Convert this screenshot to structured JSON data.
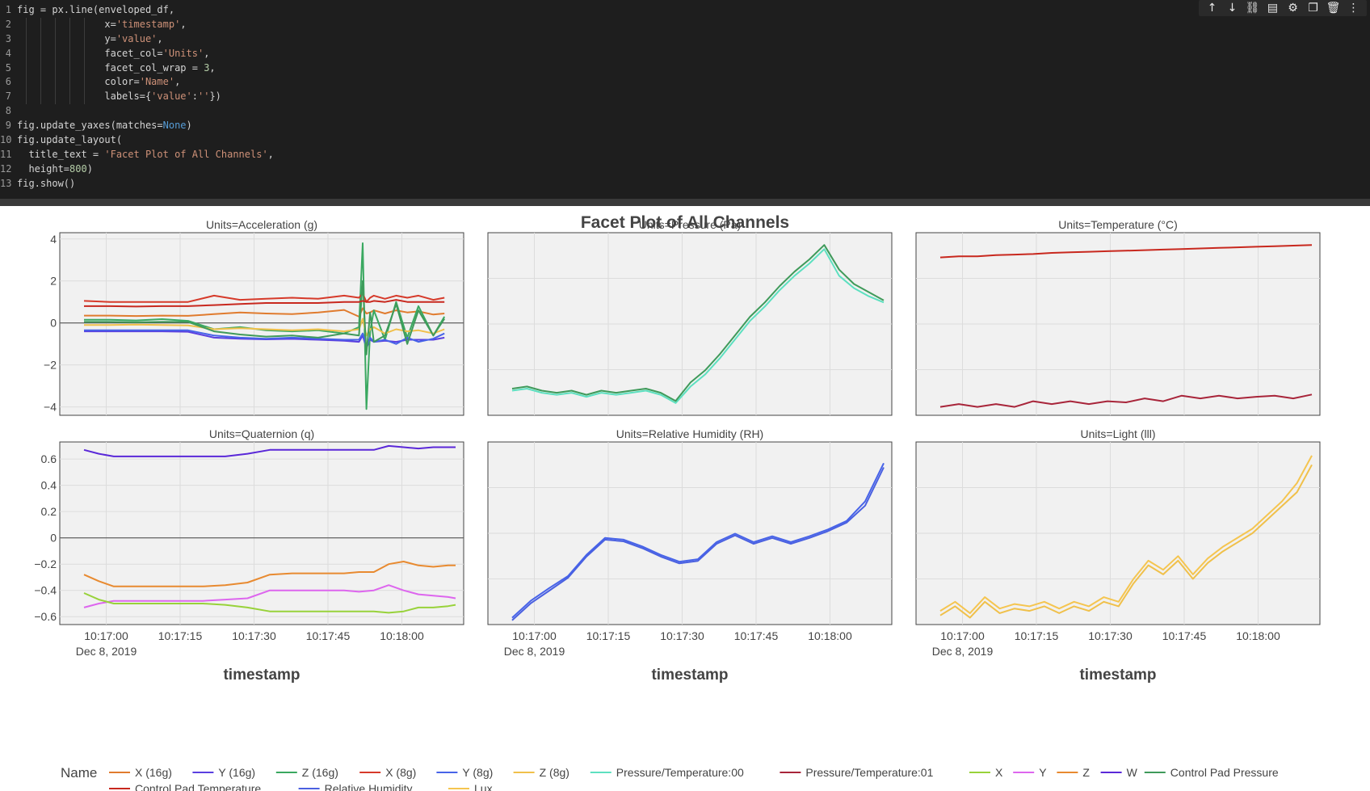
{
  "code": {
    "lines": [
      [
        {
          "t": "fig = px.line(enveloped_df,"
        }
      ],
      [
        {
          "t": "               x="
        },
        {
          "t": "'timestamp'",
          "c": "str"
        },
        {
          "t": ","
        }
      ],
      [
        {
          "t": "               y="
        },
        {
          "t": "'value'",
          "c": "str"
        },
        {
          "t": ","
        }
      ],
      [
        {
          "t": "               facet_col="
        },
        {
          "t": "'Units'",
          "c": "str"
        },
        {
          "t": ","
        }
      ],
      [
        {
          "t": "               facet_col_wrap = "
        },
        {
          "t": "3",
          "c": "num"
        },
        {
          "t": ","
        }
      ],
      [
        {
          "t": "               color="
        },
        {
          "t": "'Name'",
          "c": "str"
        },
        {
          "t": ","
        }
      ],
      [
        {
          "t": "               labels={"
        },
        {
          "t": "'value'",
          "c": "str"
        },
        {
          "t": ":"
        },
        {
          "t": "''",
          "c": "str"
        },
        {
          "t": "})"
        }
      ],
      [
        {
          "t": ""
        }
      ],
      [
        {
          "t": "fig.update_yaxes(matches="
        },
        {
          "t": "None",
          "c": "kw"
        },
        {
          "t": ")"
        }
      ],
      [
        {
          "t": "fig.update_layout("
        }
      ],
      [
        {
          "t": "  title_text = "
        },
        {
          "t": "'Facet Plot of All Channels'",
          "c": "str"
        },
        {
          "t": ","
        }
      ],
      [
        {
          "t": "  height="
        },
        {
          "t": "800",
          "c": "num"
        },
        {
          "t": ")"
        }
      ],
      [
        {
          "t": "fig.show()"
        }
      ]
    ]
  },
  "toolbar": {
    "icons": [
      {
        "name": "move-up-icon",
        "glyph": "↑"
      },
      {
        "name": "move-down-icon",
        "glyph": "↓"
      },
      {
        "name": "link-icon",
        "glyph": "⛓"
      },
      {
        "name": "comment-icon",
        "glyph": "▤"
      },
      {
        "name": "settings-icon",
        "glyph": "⚙"
      },
      {
        "name": "copy-icon",
        "glyph": "❐"
      },
      {
        "name": "delete-icon",
        "glyph": "🗑"
      },
      {
        "name": "more-icon",
        "glyph": "⋮"
      }
    ]
  },
  "chart_data": {
    "type": "line",
    "title": "Facet Plot of All Channels",
    "facet_variable": "Units",
    "xlabel": "timestamp",
    "x_ticks": [
      "10:17:00",
      "10:17:15",
      "10:17:30",
      "10:17:45",
      "10:18:00"
    ],
    "x_date_label": "Dec 8, 2019",
    "x_range": [
      "10:16:51",
      "10:18:12"
    ],
    "legend_title": "Name",
    "legend_position": "bottom",
    "colors": {
      "X (16g)": "#e07b2e",
      "Y (16g)": "#5a3fe0",
      "Z (16g)": "#3aa860",
      "X (8g)": "#d63a2a",
      "Y (8g)": "#4763e8",
      "Z (8g)": "#f0c04a",
      "Pressure/Temperature:00": "#5de0c0",
      "Pressure/Temperature:01": "#a8253a",
      "X": "#98d23a",
      "Y": "#dd66ee",
      "Z": "#e88a30",
      "W": "#5a28d8",
      "Control Pad Pressure": "#3f9a5a",
      "Control Pad Temperature": "#c8281e",
      "Relative Humidity": "#4a60e0",
      "Lux": "#f5c550"
    },
    "legend": [
      "X (16g)",
      "Y (16g)",
      "Z (16g)",
      "X (8g)",
      "Y (8g)",
      "Z (8g)",
      "Pressure/Temperature:00",
      "Pressure/Temperature:01",
      "X",
      "Y",
      "Z",
      "W",
      "Control Pad Pressure",
      "Control Pad Temperature",
      "Relative Humidity",
      "Lux"
    ],
    "facets": [
      {
        "title": "Units=Acceleration (g)",
        "y_range": [
          -4.4,
          4.3
        ],
        "y_ticks": [
          4,
          2,
          0,
          -2,
          -4
        ],
        "y_tick_labels": [
          "4",
          "2",
          "0",
          "−2",
          "−4"
        ],
        "zero_line": true,
        "x": [
          0,
          7,
          14,
          21,
          28,
          35,
          42,
          49,
          56,
          63,
          70,
          74,
          75,
          76,
          77,
          78,
          81,
          84,
          87,
          90,
          94,
          97
        ],
        "series": [
          {
            "name": "X (16g)",
            "values": [
              0.35,
              0.35,
              0.33,
              0.35,
              0.34,
              0.42,
              0.5,
              0.45,
              0.42,
              0.5,
              0.62,
              0.3,
              0.7,
              0.45,
              0.5,
              0.6,
              0.45,
              0.6,
              0.5,
              0.55,
              0.4,
              0.45
            ]
          },
          {
            "name": "Y (16g)",
            "values": [
              -0.4,
              -0.4,
              -0.4,
              -0.4,
              -0.42,
              -0.7,
              -0.75,
              -0.78,
              -0.76,
              -0.8,
              -0.85,
              -0.9,
              -0.6,
              -1.2,
              -0.8,
              -0.9,
              -0.85,
              -0.9,
              -0.8,
              -0.8,
              -0.8,
              -0.7
            ]
          },
          {
            "name": "Z (16g)",
            "values": [
              0.15,
              0.15,
              0.12,
              0.18,
              0.1,
              -0.3,
              -0.2,
              -0.35,
              -0.4,
              -0.35,
              -0.5,
              -0.2,
              3.8,
              -4.1,
              -0.4,
              0.6,
              -0.8,
              1.0,
              -0.7,
              0.8,
              -0.6,
              0.3
            ]
          },
          {
            "name": "X (8g)",
            "values": [
              1.05,
              1.0,
              1.0,
              1.0,
              1.0,
              1.3,
              1.1,
              1.15,
              1.2,
              1.15,
              1.3,
              1.2,
              1.4,
              1.0,
              1.2,
              1.3,
              1.15,
              1.3,
              1.2,
              1.3,
              1.1,
              1.2
            ]
          },
          {
            "name": "Y (8g)",
            "values": [
              -0.35,
              -0.35,
              -0.35,
              -0.35,
              -0.35,
              -0.6,
              -0.7,
              -0.75,
              -0.7,
              -0.75,
              -0.8,
              -0.8,
              -0.5,
              -1.1,
              -0.7,
              -0.9,
              -0.8,
              -1.0,
              -0.7,
              -0.9,
              -0.75,
              -0.5
            ]
          },
          {
            "name": "Z (8g)",
            "values": [
              -0.1,
              -0.1,
              -0.08,
              -0.1,
              -0.12,
              -0.3,
              -0.25,
              -0.3,
              -0.35,
              -0.3,
              -0.4,
              -0.3,
              0.2,
              -0.6,
              -0.3,
              -0.2,
              -0.5,
              -0.3,
              -0.4,
              -0.35,
              -0.5,
              -0.3
            ]
          },
          {
            "name": "Control Pad Pressure",
            "values": [
              0.05,
              0.05,
              0.03,
              0.05,
              0.05,
              -0.4,
              -0.55,
              -0.65,
              -0.6,
              -0.7,
              -0.5,
              -0.6,
              2.0,
              -1.5,
              0.5,
              -0.9,
              -0.6,
              0.9,
              -1.0,
              0.6,
              -0.6,
              0.2
            ]
          },
          {
            "name": "Control Pad Temperature",
            "values": [
              0.8,
              0.8,
              0.78,
              0.8,
              0.8,
              0.85,
              0.9,
              0.95,
              0.95,
              0.95,
              1.0,
              1.0,
              1.05,
              1.0,
              1.0,
              1.05,
              1.0,
              1.1,
              1.0,
              1.0,
              1.0,
              1.0
            ]
          }
        ]
      },
      {
        "title": "Units=Pressure (Pa)",
        "y_range": [
          -4.6,
          4.3
        ],
        "y_ticks": [],
        "y_tick_labels": [],
        "zero_line": false,
        "x": [
          0,
          4,
          8,
          12,
          16,
          20,
          24,
          28,
          32,
          36,
          40,
          44,
          48,
          52,
          56,
          60,
          64,
          68,
          72,
          76,
          80,
          84,
          88,
          92,
          96,
          100
        ],
        "series": [
          {
            "name": "Pressure/Temperature:00",
            "values": [
              -3.4,
              -3.3,
              -3.5,
              -3.6,
              -3.5,
              -3.7,
              -3.5,
              -3.6,
              -3.5,
              -3.4,
              -3.6,
              -4.0,
              -3.2,
              -2.6,
              -1.8,
              -0.9,
              0.0,
              0.7,
              1.5,
              2.2,
              2.8,
              3.5,
              2.2,
              1.6,
              1.2,
              0.9
            ]
          },
          {
            "name": "Control Pad Pressure",
            "values": [
              -3.3,
              -3.2,
              -3.4,
              -3.5,
              -3.4,
              -3.6,
              -3.4,
              -3.5,
              -3.4,
              -3.3,
              -3.5,
              -3.9,
              -3.0,
              -2.4,
              -1.6,
              -0.7,
              0.2,
              0.9,
              1.7,
              2.4,
              3.0,
              3.7,
              2.5,
              1.8,
              1.4,
              1.0
            ]
          }
        ]
      },
      {
        "title": "Units=Temperature (°C)",
        "y_range": [
          -2.05,
          1.2
        ],
        "y_ticks": [],
        "y_tick_labels": [],
        "zero_line": false,
        "x": [
          0,
          5,
          10,
          15,
          20,
          25,
          30,
          35,
          40,
          45,
          50,
          55,
          60,
          65,
          70,
          75,
          80,
          85,
          90,
          95,
          100
        ],
        "series": [
          {
            "name": "Pressure/Temperature:01",
            "values": [
              -1.9,
              -1.85,
              -1.9,
              -1.85,
              -1.9,
              -1.8,
              -1.85,
              -1.8,
              -1.85,
              -1.8,
              -1.82,
              -1.75,
              -1.8,
              -1.7,
              -1.75,
              -1.7,
              -1.75,
              -1.72,
              -1.7,
              -1.75,
              -1.68
            ]
          },
          {
            "name": "Control Pad Temperature",
            "values": [
              0.76,
              0.78,
              0.78,
              0.8,
              0.81,
              0.82,
              0.84,
              0.85,
              0.86,
              0.87,
              0.88,
              0.89,
              0.9,
              0.91,
              0.92,
              0.93,
              0.94,
              0.95,
              0.96,
              0.97,
              0.98
            ]
          }
        ]
      },
      {
        "title": "Units=Quaternion (q)",
        "y_range": [
          -0.66,
          0.73
        ],
        "y_ticks": [
          0.6,
          0.4,
          0.2,
          0,
          -0.2,
          -0.4,
          -0.6
        ],
        "y_tick_labels": [
          "0.6",
          "0.4",
          "0.2",
          "0",
          "−0.2",
          "−0.4",
          "−0.6"
        ],
        "zero_line": true,
        "x": [
          0,
          4,
          8,
          14,
          20,
          26,
          32,
          38,
          44,
          50,
          56,
          62,
          66,
          70,
          74,
          78,
          82,
          86,
          90,
          94,
          98,
          100
        ],
        "series": [
          {
            "name": "W",
            "values": [
              0.67,
              0.64,
              0.62,
              0.62,
              0.62,
              0.62,
              0.62,
              0.62,
              0.64,
              0.67,
              0.67,
              0.67,
              0.67,
              0.67,
              0.67,
              0.67,
              0.7,
              0.69,
              0.68,
              0.69,
              0.69,
              0.69
            ]
          },
          {
            "name": "Z",
            "values": [
              -0.28,
              -0.33,
              -0.37,
              -0.37,
              -0.37,
              -0.37,
              -0.37,
              -0.36,
              -0.34,
              -0.28,
              -0.27,
              -0.27,
              -0.27,
              -0.27,
              -0.26,
              -0.26,
              -0.2,
              -0.18,
              -0.21,
              -0.22,
              -0.21,
              -0.21
            ]
          },
          {
            "name": "Y",
            "values": [
              -0.53,
              -0.5,
              -0.48,
              -0.48,
              -0.48,
              -0.48,
              -0.48,
              -0.47,
              -0.46,
              -0.4,
              -0.4,
              -0.4,
              -0.4,
              -0.4,
              -0.41,
              -0.4,
              -0.36,
              -0.4,
              -0.43,
              -0.44,
              -0.45,
              -0.46
            ]
          },
          {
            "name": "X",
            "values": [
              -0.42,
              -0.47,
              -0.5,
              -0.5,
              -0.5,
              -0.5,
              -0.5,
              -0.51,
              -0.53,
              -0.56,
              -0.56,
              -0.56,
              -0.56,
              -0.56,
              -0.56,
              -0.56,
              -0.57,
              -0.56,
              -0.53,
              -0.53,
              -0.52,
              -0.51
            ]
          }
        ]
      },
      {
        "title": "Units=Relative Humidity (RH)",
        "y_range": [
          -0.9,
          1.25
        ],
        "y_ticks": [],
        "y_tick_labels": [],
        "zero_line": false,
        "x": [
          0,
          5,
          10,
          15,
          20,
          25,
          30,
          35,
          40,
          45,
          50,
          55,
          60,
          65,
          70,
          75,
          80,
          85,
          90,
          95,
          100
        ],
        "series": [
          {
            "name": "Relative Humidity",
            "values": [
              -0.85,
              -0.65,
              -0.5,
              -0.35,
              -0.1,
              0.1,
              0.08,
              0.0,
              -0.1,
              -0.18,
              -0.15,
              0.05,
              0.15,
              0.05,
              0.12,
              0.05,
              0.12,
              0.2,
              0.3,
              0.5,
              0.95
            ]
          },
          {
            "name": "Y (8g)",
            "values": [
              -0.82,
              -0.62,
              -0.47,
              -0.33,
              -0.08,
              0.12,
              0.1,
              0.02,
              -0.08,
              -0.16,
              -0.13,
              0.07,
              0.17,
              0.07,
              0.14,
              0.07,
              0.14,
              0.22,
              0.32,
              0.55,
              1.0
            ]
          }
        ]
      },
      {
        "title": "Units=Light (lll)",
        "y_range": [
          -1.2,
          2.8
        ],
        "y_ticks": [],
        "y_tick_labels": [],
        "zero_line": false,
        "x": [
          0,
          4,
          8,
          12,
          16,
          20,
          24,
          28,
          32,
          36,
          40,
          44,
          48,
          52,
          56,
          60,
          64,
          68,
          72,
          76,
          80,
          84,
          88,
          92,
          96,
          100
        ],
        "series": [
          {
            "name": "Lux",
            "values": [
              -0.9,
              -0.7,
              -0.95,
              -0.6,
              -0.85,
              -0.75,
              -0.8,
              -0.7,
              -0.85,
              -0.7,
              -0.8,
              -0.6,
              -0.7,
              -0.2,
              0.2,
              0.0,
              0.3,
              -0.1,
              0.25,
              0.5,
              0.7,
              0.9,
              1.2,
              1.5,
              1.9,
              2.5
            ]
          },
          {
            "name": "Z (8g)",
            "values": [
              -1.0,
              -0.8,
              -1.05,
              -0.7,
              -0.95,
              -0.85,
              -0.9,
              -0.8,
              -0.95,
              -0.8,
              -0.9,
              -0.7,
              -0.8,
              -0.3,
              0.1,
              -0.1,
              0.2,
              -0.2,
              0.15,
              0.4,
              0.6,
              0.8,
              1.1,
              1.4,
              1.7,
              2.3
            ]
          }
        ]
      }
    ]
  }
}
